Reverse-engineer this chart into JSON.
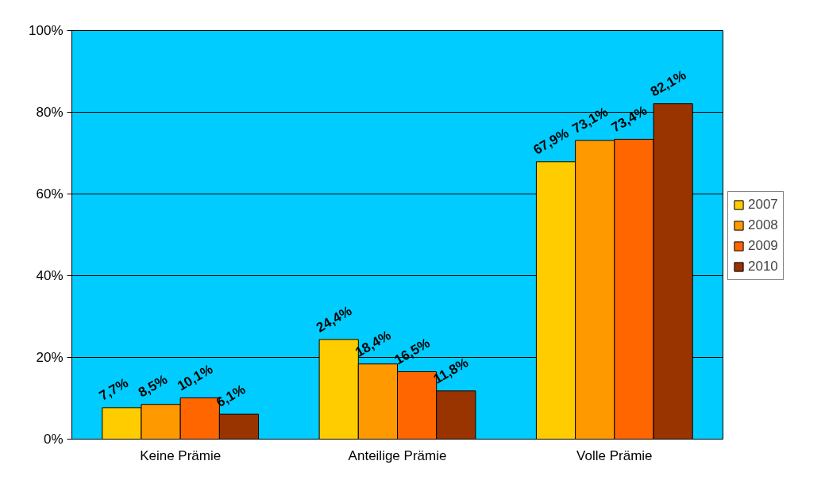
{
  "chart_data": {
    "type": "bar",
    "categories": [
      "Keine Prämie",
      "Anteilige Prämie",
      "Volle Prämie"
    ],
    "series": [
      {
        "name": "2007",
        "color": "#ffcc00",
        "values": [
          7.7,
          24.4,
          67.9
        ],
        "value_labels": [
          "7,7%",
          "24,4%",
          "67,9%"
        ]
      },
      {
        "name": "2008",
        "color": "#ff9900",
        "values": [
          8.5,
          18.4,
          73.1
        ],
        "value_labels": [
          "8,5%",
          "18,4%",
          "73,1%"
        ]
      },
      {
        "name": "2009",
        "color": "#ff6600",
        "values": [
          10.1,
          16.5,
          73.4
        ],
        "value_labels": [
          "10,1%",
          "16,5%",
          "73,4%"
        ]
      },
      {
        "name": "2010",
        "color": "#993300",
        "values": [
          6.1,
          11.8,
          82.1
        ],
        "value_labels": [
          "6,1%",
          "11,8%",
          "82,1%"
        ]
      }
    ],
    "ylim": [
      0,
      100
    ],
    "yticks": [
      {
        "value": 0,
        "label": "0%"
      },
      {
        "value": 20,
        "label": "20%"
      },
      {
        "value": 40,
        "label": "40%"
      },
      {
        "value": 60,
        "label": "60%"
      },
      {
        "value": 80,
        "label": "80%"
      },
      {
        "value": 100,
        "label": "100%"
      }
    ],
    "grid": "y",
    "legend": "right"
  }
}
